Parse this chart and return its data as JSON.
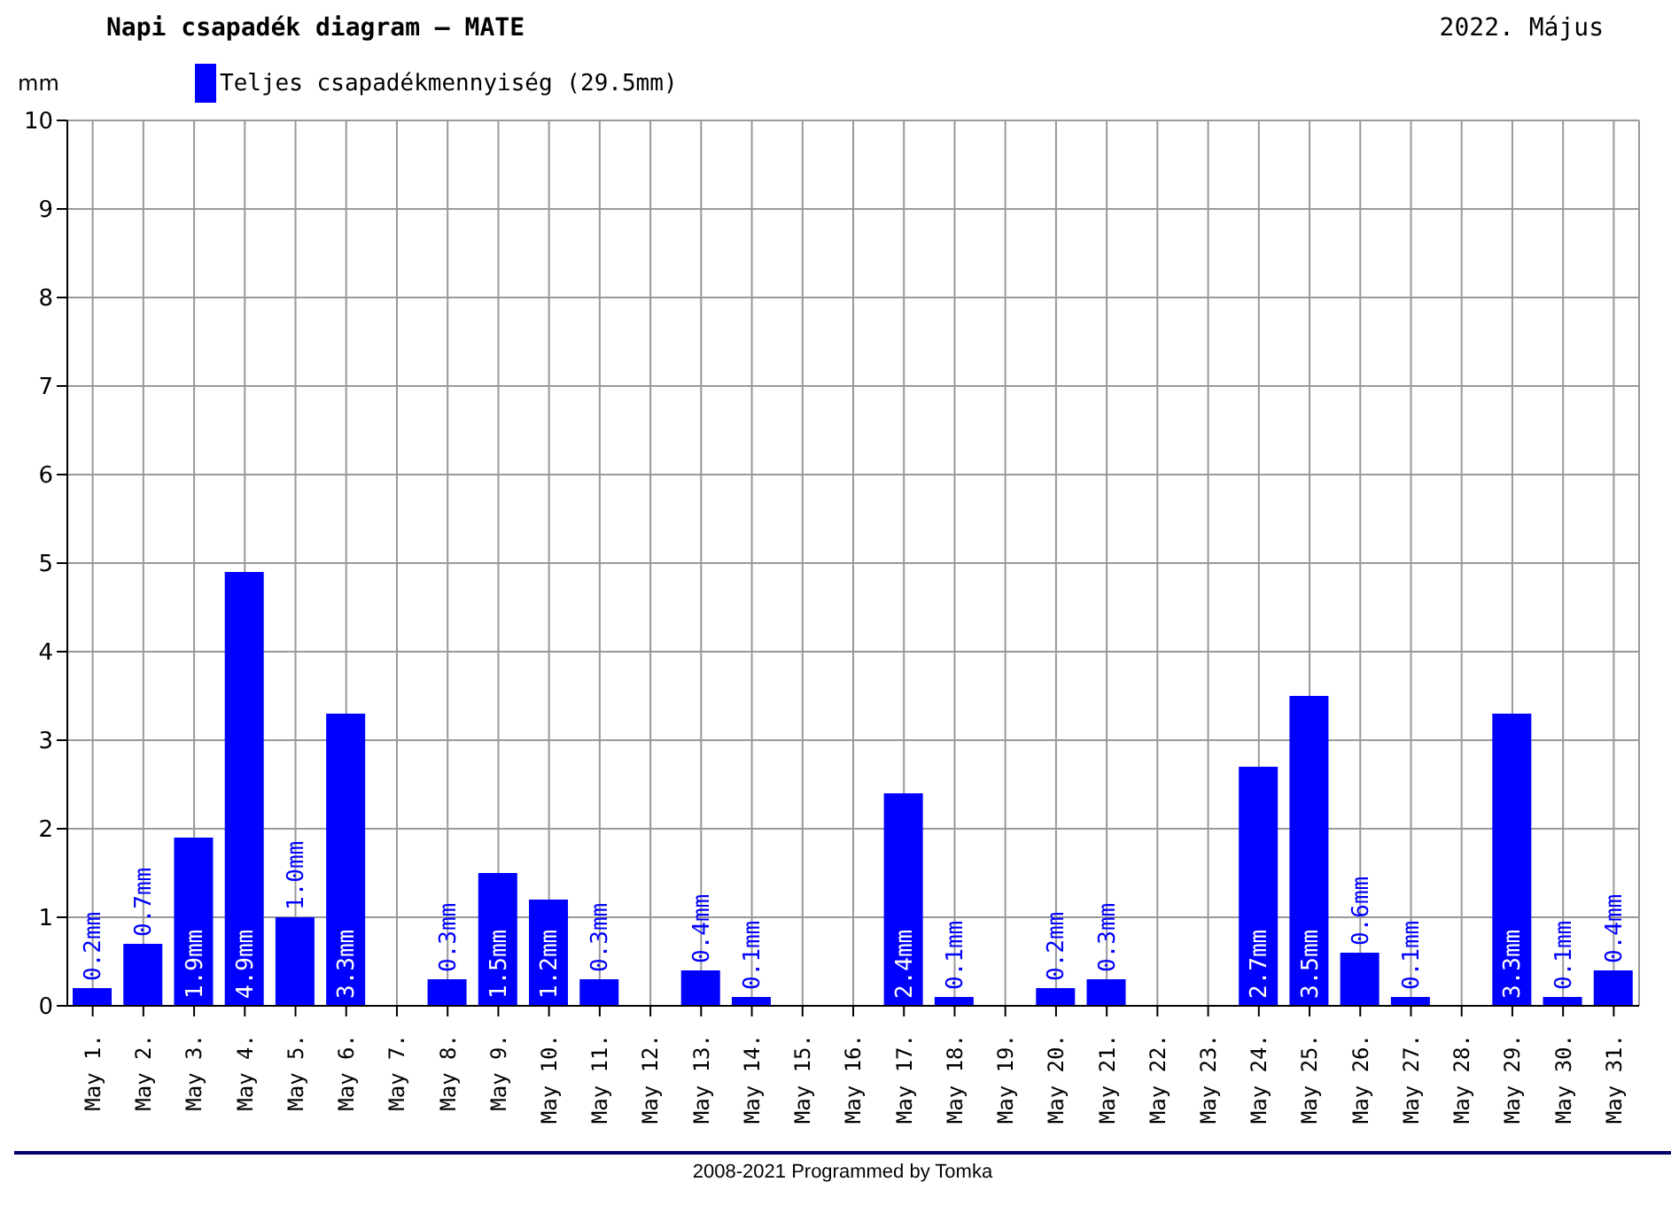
{
  "chart_data": {
    "type": "bar",
    "title": "Napi csapadék diagram – MATE",
    "subtitle": "2022. Május",
    "ylabel": "mm",
    "categories": [
      "May 1.",
      "May 2.",
      "May 3.",
      "May 4.",
      "May 5.",
      "May 6.",
      "May 7.",
      "May 8.",
      "May 9.",
      "May 10.",
      "May 11.",
      "May 12.",
      "May 13.",
      "May 14.",
      "May 15.",
      "May 16.",
      "May 17.",
      "May 18.",
      "May 19.",
      "May 20.",
      "May 21.",
      "May 22.",
      "May 23.",
      "May 24.",
      "May 25.",
      "May 26.",
      "May 27.",
      "May 28.",
      "May 29.",
      "May 30.",
      "May 31."
    ],
    "series": [
      {
        "name": "Teljes csapadékmennyiség (29.5mm)",
        "color": "#0000ff",
        "values": [
          0.2,
          0.7,
          1.9,
          4.9,
          1.0,
          3.3,
          0,
          0.3,
          1.5,
          1.2,
          0.3,
          0,
          0.4,
          0.1,
          0,
          0,
          2.4,
          0.1,
          0,
          0.2,
          0.3,
          0,
          0,
          2.7,
          3.5,
          0.6,
          0.1,
          0,
          3.3,
          0.1,
          0.4
        ],
        "value_labels": [
          "0.2mm",
          "0.7mm",
          "1.9mm",
          "4.9mm",
          "1.0mm",
          "3.3mm",
          null,
          "0.3mm",
          "1.5mm",
          "1.2mm",
          "0.3mm",
          null,
          "0.4mm",
          "0.1mm",
          null,
          null,
          "2.4mm",
          "0.1mm",
          null,
          "0.2mm",
          "0.3mm",
          null,
          null,
          "2.7mm",
          "3.5mm",
          "0.6mm",
          "0.1mm",
          null,
          "3.3mm",
          "0.1mm",
          "0.4mm"
        ]
      }
    ],
    "ylim": [
      0,
      10
    ],
    "yticks": [
      0,
      1,
      2,
      3,
      4,
      5,
      6,
      7,
      8,
      9,
      10
    ],
    "grid": true,
    "legend": "top left",
    "annotations": [
      "2008-2021 Programmed by Tomka"
    ]
  }
}
